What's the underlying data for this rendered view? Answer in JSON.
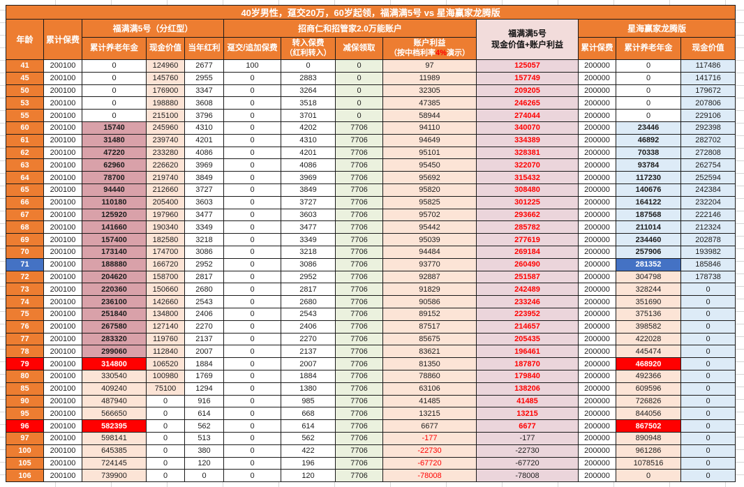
{
  "title": "40岁男性，趸交20万，60岁起领，福满满5号 vs 星海赢家龙腾版",
  "header": {
    "age": "年龄",
    "cum_premium": "累计保费",
    "group_fumanman": "福满满5号（分红型）",
    "fm_annuity": "累计养老年金",
    "fm_cash": "现金价值",
    "fm_dividend": "当年红利",
    "group_universal": "招商仁和招管家2.0万能账户",
    "u_single": "趸交/追加保费",
    "u_transfer_1": "转入保费",
    "u_transfer_2": "（红利转入）",
    "u_withdraw": "减保领取",
    "u_benefit_1": "账户利益",
    "u_benefit_2a": "（按中档利率",
    "u_benefit_rate": "4%",
    "u_benefit_2b": "演示）",
    "sum_1": "福满满5号",
    "sum_2": "现金价值+账户利益",
    "group_xinghai": "星海赢家龙腾版",
    "xh_premium": "累计保费",
    "xh_annuity": "累计养老年金",
    "xh_cash": "现金价值"
  },
  "colors": {
    "header_orange": "#ED7D31",
    "highlight_red": "#FF0000",
    "selection_blue": "#4472C4",
    "fm_annuity_mauve": "#D9A1A9",
    "peach": "#FCE4D6",
    "withdraw_green": "#EBF1DE",
    "xinghai_blue": "#DDEBF7",
    "sum_pink": "#EBD5DB",
    "sum_header_pink": "#F2DCDB",
    "negative_red": "#FF0000"
  },
  "columns": [
    "age-cell",
    "cum-premium-cell",
    "fm-annuity-cell",
    "fm-cash-cell",
    "fm-dividend-cell",
    "u-single-premium-cell",
    "u-transfer-cell",
    "u-withdraw-cell",
    "u-benefit-cell",
    "fm-total-cell",
    "xh-premium-cell",
    "xh-annuity-cell",
    "xh-cash-cell"
  ],
  "rows": [
    [
      41,
      200100,
      0,
      124960,
      2677,
      100,
      0,
      0,
      97,
      125057,
      200000,
      0,
      117486
    ],
    [
      45,
      200100,
      0,
      145760,
      2955,
      0,
      2883,
      0,
      11989,
      157749,
      200000,
      0,
      141716
    ],
    [
      50,
      200100,
      0,
      176900,
      3347,
      0,
      3264,
      0,
      32305,
      209205,
      200000,
      0,
      179672
    ],
    [
      53,
      200100,
      0,
      198880,
      3608,
      0,
      3518,
      0,
      47385,
      246265,
      200000,
      0,
      207806
    ],
    [
      55,
      200100,
      0,
      215100,
      3796,
      0,
      3701,
      0,
      58944,
      274044,
      200000,
      0,
      229106
    ],
    [
      60,
      200100,
      15740,
      245960,
      4310,
      0,
      4202,
      7706,
      94110,
      340070,
      200000,
      23446,
      292398
    ],
    [
      61,
      200100,
      31480,
      239740,
      4201,
      0,
      4310,
      7706,
      94649,
      334389,
      200000,
      46892,
      282702
    ],
    [
      62,
      200100,
      47220,
      233280,
      4086,
      0,
      4201,
      7706,
      95101,
      328381,
      200000,
      70338,
      272808
    ],
    [
      63,
      200100,
      62960,
      226620,
      3969,
      0,
      4086,
      7706,
      95450,
      322070,
      200000,
      93784,
      262754
    ],
    [
      64,
      200100,
      78700,
      219740,
      3849,
      0,
      3969,
      7706,
      95692,
      315432,
      200000,
      117230,
      252594
    ],
    [
      65,
      200100,
      94440,
      212660,
      3727,
      0,
      3849,
      7706,
      95820,
      308480,
      200000,
      140676,
      242384
    ],
    [
      66,
      200100,
      110180,
      205400,
      3603,
      0,
      3727,
      7706,
      95825,
      301225,
      200000,
      164122,
      232204
    ],
    [
      67,
      200100,
      125920,
      197960,
      3477,
      0,
      3603,
      7706,
      95702,
      293662,
      200000,
      187568,
      222146
    ],
    [
      68,
      200100,
      141660,
      190340,
      3349,
      0,
      3477,
      7706,
      95442,
      285782,
      200000,
      211014,
      212324
    ],
    [
      69,
      200100,
      157400,
      182580,
      3218,
      0,
      3349,
      7706,
      95039,
      277619,
      200000,
      234460,
      202878
    ],
    [
      70,
      200100,
      173140,
      174700,
      3086,
      0,
      3218,
      7706,
      94484,
      269184,
      200000,
      257906,
      193982
    ],
    [
      71,
      200100,
      188880,
      166720,
      2952,
      0,
      3086,
      7706,
      93770,
      260490,
      200000,
      281352,
      185846
    ],
    [
      72,
      200100,
      204620,
      158700,
      2817,
      0,
      2952,
      7706,
      92887,
      251587,
      200000,
      304798,
      178738
    ],
    [
      73,
      200100,
      220360,
      150660,
      2680,
      0,
      2817,
      7706,
      91829,
      242489,
      200000,
      328244,
      0
    ],
    [
      74,
      200100,
      236100,
      142660,
      2543,
      0,
      2680,
      7706,
      90586,
      233246,
      200000,
      351690,
      0
    ],
    [
      75,
      200100,
      251840,
      134800,
      2406,
      0,
      2543,
      7706,
      89152,
      223952,
      200000,
      375136,
      0
    ],
    [
      76,
      200100,
      267580,
      127140,
      2270,
      0,
      2406,
      7706,
      87517,
      214657,
      200000,
      398582,
      0
    ],
    [
      77,
      200100,
      283320,
      119760,
      2137,
      0,
      2270,
      7706,
      85675,
      205435,
      200000,
      422028,
      0
    ],
    [
      78,
      200100,
      299060,
      112840,
      2007,
      0,
      2137,
      7706,
      83621,
      196461,
      200000,
      445474,
      0
    ],
    [
      79,
      200100,
      314800,
      106520,
      1884,
      0,
      2007,
      7706,
      81350,
      187870,
      200000,
      468920,
      0
    ],
    [
      80,
      200100,
      330540,
      100980,
      1769,
      0,
      1884,
      7706,
      78860,
      179840,
      200000,
      492366,
      0
    ],
    [
      85,
      200100,
      409240,
      75100,
      1294,
      0,
      1380,
      7706,
      63106,
      138206,
      200000,
      609596,
      0
    ],
    [
      90,
      200100,
      487940,
      0,
      916,
      0,
      985,
      7706,
      41485,
      41485,
      200000,
      726826,
      0
    ],
    [
      95,
      200100,
      566650,
      0,
      614,
      0,
      668,
      7706,
      13215,
      13215,
      200000,
      844056,
      0
    ],
    [
      96,
      200100,
      582395,
      0,
      562,
      0,
      614,
      7706,
      6677,
      6677,
      200000,
      867502,
      0
    ],
    [
      97,
      200100,
      598141,
      0,
      513,
      0,
      562,
      7706,
      -177,
      -177,
      200000,
      890948,
      0
    ],
    [
      100,
      200100,
      645385,
      0,
      380,
      0,
      422,
      7706,
      -22730,
      -22730,
      200000,
      961286,
      0
    ],
    [
      105,
      200100,
      724145,
      0,
      120,
      0,
      196,
      7706,
      -67720,
      -67720,
      200000,
      1078516,
      0
    ],
    [
      106,
      200100,
      739900,
      0,
      0,
      0,
      120,
      7706,
      -78008,
      -78008,
      200000,
      0,
      0
    ]
  ]
}
